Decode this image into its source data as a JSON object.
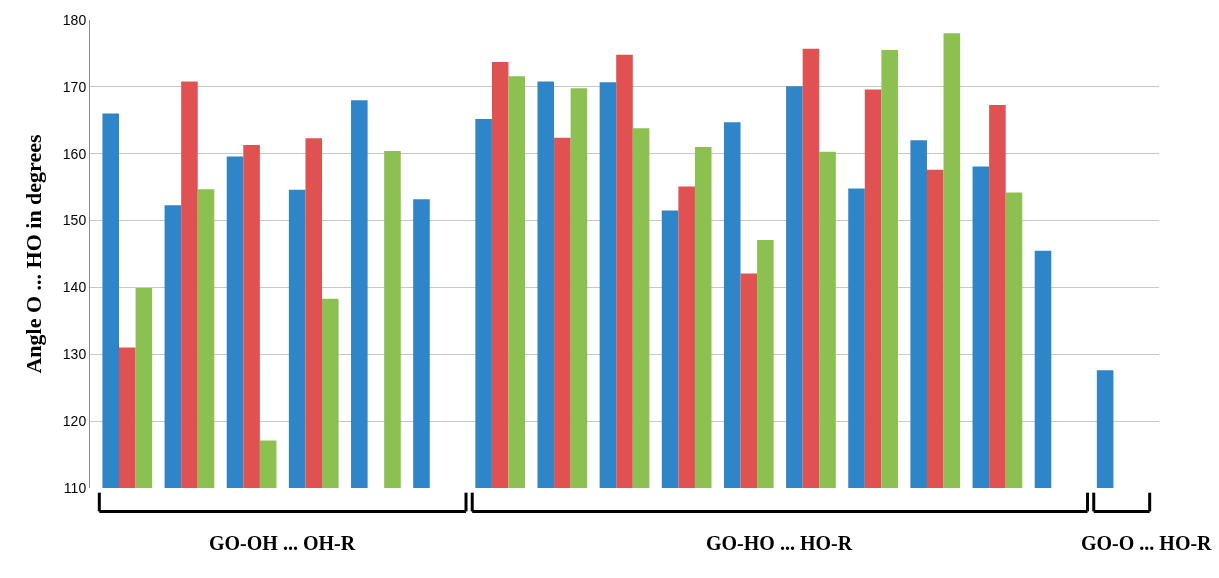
{
  "chart_data": {
    "type": "bar",
    "ylabel": "Angle O ... HO in degrees",
    "categories": [
      null,
      null,
      null,
      null,
      null,
      null,
      null,
      null,
      null,
      null,
      null,
      null,
      null,
      null,
      null,
      null,
      null
    ],
    "series": [
      {
        "color": "#2e86c8",
        "values": [
          166,
          152.3,
          159.6,
          154.6,
          168,
          153.2,
          165.2,
          170.8,
          170.7,
          151.5,
          164.7,
          170.1,
          154.8,
          162,
          158.1,
          145.5,
          127.6
        ]
      },
      {
        "color": "#e05252",
        "values": [
          131,
          170.8,
          161.3,
          162.3,
          null,
          null,
          173.7,
          162.4,
          174.8,
          155.1,
          142.1,
          175.7,
          169.6,
          157.6,
          167.3,
          null,
          null
        ]
      },
      {
        "color": "#8cc152",
        "values": [
          139.9,
          154.7,
          117.1,
          138.3,
          160.4,
          null,
          171.6,
          169.8,
          163.8,
          161,
          147.1,
          160.3,
          175.5,
          178,
          154.2,
          null,
          null
        ]
      }
    ],
    "ylim": [
      110,
      180
    ],
    "yticks": [
      110,
      120,
      130,
      140,
      150,
      160,
      170,
      180
    ],
    "grid": "y",
    "annotations": [
      "GO-OH ... OH-R",
      "GO-HO ... HO-R",
      "GO-O ... HO-R"
    ]
  }
}
